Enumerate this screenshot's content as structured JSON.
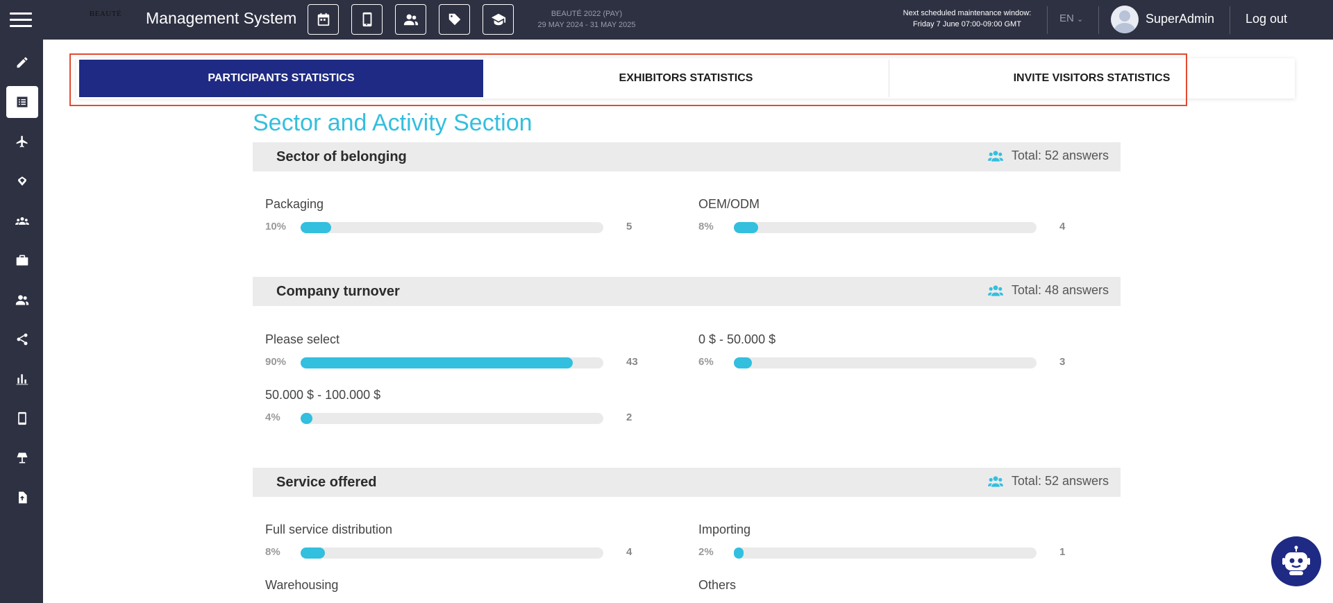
{
  "header": {
    "app_title": "Management System",
    "logo_text": "BEAUTÉ",
    "event_name": "BEAUTÉ 2022 (PAY)",
    "event_dates": "29 MAY 2024 - 31 MAY 2025",
    "maintenance_title": "Next scheduled maintenance window:",
    "maintenance_window": "Friday 7 June 07:00-09:00 GMT",
    "language": "EN",
    "username": "SuperAdmin",
    "logout_label": "Log out",
    "icons": [
      "calendar-icon",
      "mobile-icon",
      "users-icon",
      "tag-icon",
      "graduation-cap-icon"
    ]
  },
  "sidebar": {
    "items": [
      {
        "icon": "pencil-icon",
        "active": false
      },
      {
        "icon": "list-icon",
        "active": true
      },
      {
        "icon": "plane-icon",
        "active": false
      },
      {
        "icon": "handshake-icon",
        "active": false
      },
      {
        "icon": "group-icon",
        "active": false
      },
      {
        "icon": "briefcase-icon",
        "active": false
      },
      {
        "icon": "users-icon",
        "active": false
      },
      {
        "icon": "share-icon",
        "active": false
      },
      {
        "icon": "bar-chart-icon",
        "active": false
      },
      {
        "icon": "mobile-icon",
        "active": false
      },
      {
        "icon": "lamp-icon",
        "active": false
      },
      {
        "icon": "file-upload-icon",
        "active": false
      }
    ]
  },
  "tabs": [
    {
      "label": "PARTICIPANTS STATISTICS",
      "active": true
    },
    {
      "label": "EXHIBITORS STATISTICS",
      "active": false
    },
    {
      "label": "INVITE VISITORS STATISTICS",
      "active": false
    }
  ],
  "main": {
    "section_title": "Sector and Activity Section",
    "questions": [
      {
        "title": "Sector of belonging",
        "total": "Total: 52 answers",
        "answers": [
          {
            "label": "Packaging",
            "percent": "10%",
            "fraction": 0.1,
            "count": "5"
          },
          {
            "label": "OEM/ODM",
            "percent": "8%",
            "fraction": 0.08,
            "count": "4"
          }
        ]
      },
      {
        "title": "Company turnover",
        "total": "Total: 48 answers",
        "answers": [
          {
            "label": "Please select",
            "percent": "90%",
            "fraction": 0.9,
            "count": "43"
          },
          {
            "label": "0 $ - 50.000 $",
            "percent": "6%",
            "fraction": 0.06,
            "count": "3"
          },
          {
            "label": "50.000 $ - 100.000 $",
            "percent": "4%",
            "fraction": 0.04,
            "count": "2"
          }
        ]
      },
      {
        "title": "Service offered",
        "total": "Total: 52 answers",
        "answers": [
          {
            "label": "Full service distribution",
            "percent": "8%",
            "fraction": 0.08,
            "count": "4"
          },
          {
            "label": "Importing",
            "percent": "2%",
            "fraction": 0.02,
            "count": "1"
          },
          {
            "label": "Warehousing",
            "percent": "",
            "fraction": null,
            "count": ""
          },
          {
            "label": "Others",
            "percent": "",
            "fraction": null,
            "count": ""
          }
        ]
      }
    ]
  },
  "colors": {
    "topbar": "#2e3142",
    "accent": "#33bfde",
    "tab_active": "#1e2a83",
    "highlight_frame": "#e24a2f"
  }
}
